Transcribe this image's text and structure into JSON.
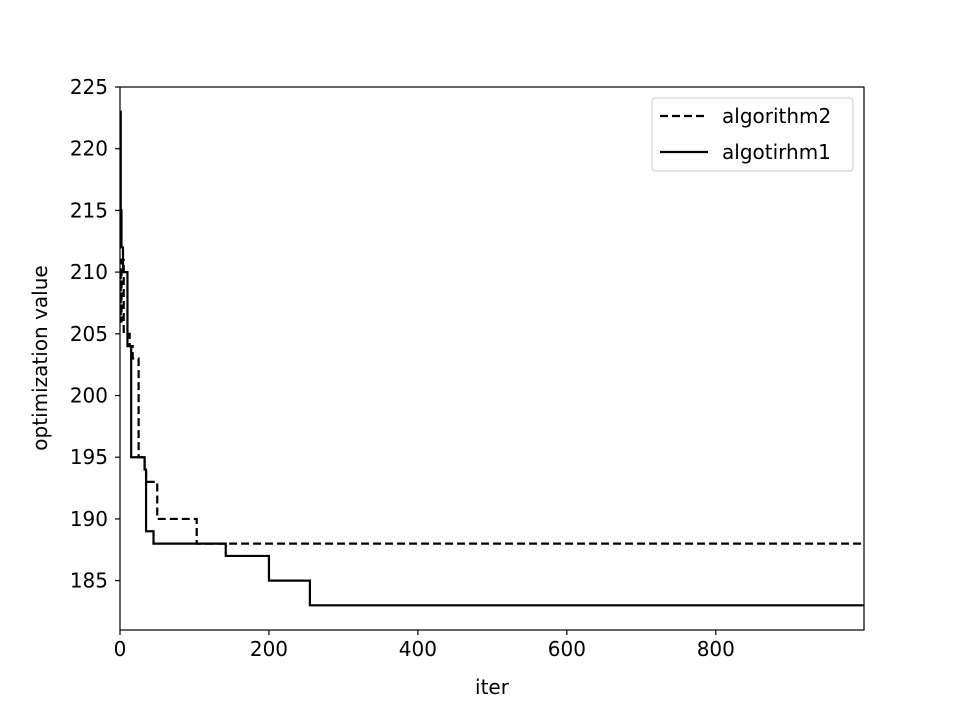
{
  "chart_data": {
    "type": "line",
    "title": "",
    "xlabel": "iter",
    "ylabel": "optimization value",
    "xlim": [
      0,
      999
    ],
    "ylim": [
      181,
      225
    ],
    "xticks": [
      0,
      200,
      400,
      600,
      800
    ],
    "yticks": [
      185,
      190,
      195,
      200,
      205,
      210,
      215,
      220,
      225
    ],
    "grid": false,
    "legend_position": "top-right",
    "series": [
      {
        "name": "algorithm2",
        "style": "dashed",
        "color": "#000000",
        "x": [
          0,
          1,
          2,
          5,
          8,
          10,
          13,
          17,
          20,
          22,
          25,
          30,
          33,
          35,
          40,
          45,
          50,
          60,
          70,
          80,
          90,
          103,
          120,
          150,
          200,
          300,
          400,
          500,
          600,
          700,
          800,
          900,
          999
        ],
        "y": [
          210,
          206,
          211,
          205,
          205,
          205,
          204,
          203,
          203,
          203,
          195,
          195,
          194,
          193,
          193,
          193,
          190,
          190,
          190,
          190,
          190,
          188,
          188,
          188,
          188,
          188,
          188,
          188,
          188,
          188,
          188,
          188,
          188
        ]
      },
      {
        "name": "algotirhm1",
        "style": "solid",
        "color": "#000000",
        "x": [
          0,
          1,
          2,
          4,
          6,
          8,
          10,
          12,
          15,
          20,
          25,
          30,
          33,
          35,
          40,
          45,
          50,
          80,
          100,
          142,
          170,
          200,
          230,
          255,
          300,
          400,
          500,
          600,
          700,
          800,
          900,
          999
        ],
        "y": [
          223,
          215,
          212,
          210,
          210,
          210,
          204,
          204,
          195,
          195,
          195,
          195,
          194,
          189,
          189,
          188,
          188,
          188,
          188,
          187,
          187,
          185,
          185,
          183,
          183,
          183,
          183,
          183,
          183,
          183,
          183,
          183
        ]
      }
    ]
  }
}
